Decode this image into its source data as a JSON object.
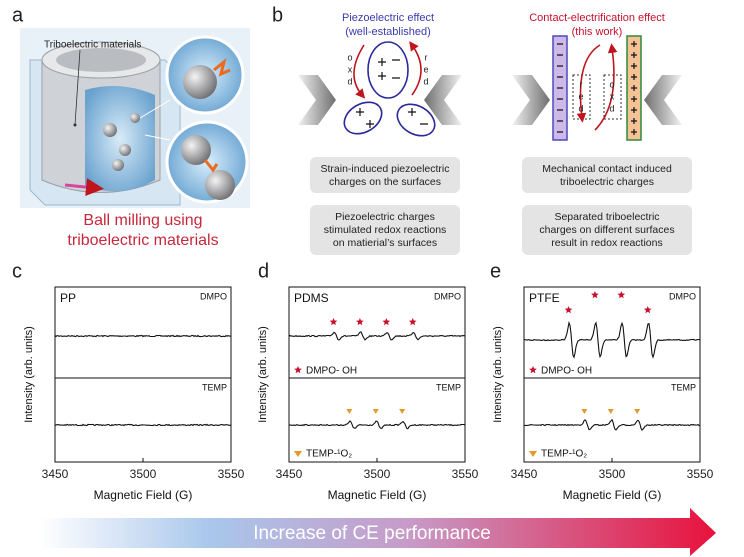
{
  "panel_labels": [
    "a",
    "b",
    "c",
    "d",
    "e"
  ],
  "panel_a": {
    "callout": "Triboelectric materials",
    "caption": [
      "Ball milling using",
      "triboelectric materials"
    ]
  },
  "panel_b": {
    "piezo": {
      "title": "Piezoelectric effect",
      "subtitle": "(well-established)",
      "boxes": [
        [
          "Strain-induced piezoelectric",
          "charges on the surfaces"
        ],
        [
          "Piezoelectric charges",
          "stimulated redox reactions",
          "on matierial’s surfaces"
        ]
      ]
    },
    "ce": {
      "title": "Contact-electrification effect",
      "subtitle": "(this work)",
      "boxes": [
        [
          "Mechanical contact induced",
          "triboelectric charges"
        ],
        [
          "Separated triboelectric",
          "charges on different surfaces",
          "result in redox reactions"
        ]
      ]
    },
    "oxd": [
      "o",
      "x",
      "d"
    ],
    "red": [
      "r",
      "e",
      "d"
    ]
  },
  "spectra": {
    "y_label": "Intensity (arb. units)",
    "x_label": "Magnetic Field (G)",
    "xlim": [
      3450,
      3550
    ],
    "xticks": [
      3450,
      3500,
      3550
    ],
    "top_probe": "DMPO",
    "bottom_probe": "TEMP",
    "legend_top": "DMPO- OH",
    "legend_bottom": "TEMP-¹O₂",
    "panels": [
      "PP",
      "PDMS",
      "PTFE"
    ]
  },
  "footer": "Increase of CE performance"
}
